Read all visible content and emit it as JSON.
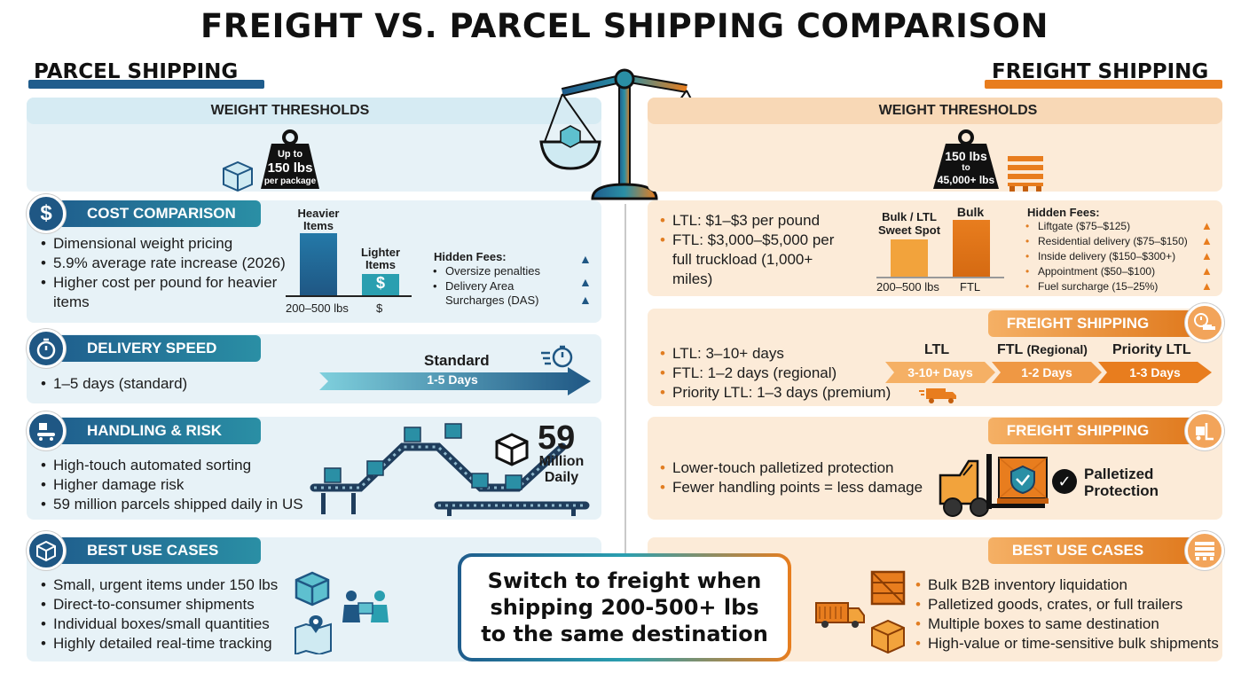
{
  "title": "FREIGHT VS. PARCEL SHIPPING COMPARISON",
  "parcel": {
    "heading": "PARCEL SHIPPING",
    "weight": {
      "header": "WEIGHT THRESHOLDS",
      "badge": [
        "Up to",
        "150 lbs",
        "per package"
      ]
    },
    "cost": {
      "title": "COST COMPARISON",
      "bullets": [
        "Dimensional weight pricing",
        "5.9% average rate increase (2026)",
        "Higher cost per pound for heavier items"
      ],
      "chart_labels": {
        "heavier": "Heavier Items",
        "lighter": "Lighter Items",
        "x_left": "200–500 lbs",
        "x_right": "$",
        "dollar": "$"
      },
      "hidden_fees_title": "Hidden Fees:",
      "hidden_fees": [
        "Oversize penalties",
        "Delivery Area Surcharges (DAS)"
      ]
    },
    "speed": {
      "title": "DELIVERY SPEED",
      "bullets": [
        "1–5 days (standard)"
      ],
      "arrow_title": "Standard",
      "arrow_text": "1-5 Days"
    },
    "handling": {
      "title": "HANDLING & RISK",
      "bullets": [
        "High-touch automated sorting",
        "Higher damage risk",
        "59 million parcels shipped daily in US"
      ],
      "stat_number": "59",
      "stat_label": [
        "Million",
        "Daily"
      ]
    },
    "use": {
      "title": "BEST USE CASES",
      "bullets": [
        "Small, urgent items under 150 lbs",
        "Direct-to-consumer shipments",
        "Individual boxes/small quantities",
        "Highly detailed real-time tracking"
      ]
    }
  },
  "freight": {
    "heading": "FREIGHT SHIPPING",
    "weight": {
      "header": "WEIGHT THRESHOLDS",
      "badge": [
        "150 lbs",
        "to",
        "45,000+ lbs"
      ]
    },
    "cost": {
      "bullets": [
        "LTL: $1–$3 per pound",
        "FTL: $3,000–$5,000 per full truckload (1,000+ miles)"
      ],
      "chart_labels": {
        "sweet": "Bulk / LTL Sweet Spot",
        "bulk": "Bulk",
        "x_left": "200–500 lbs",
        "x_right": "FTL"
      },
      "hidden_fees_title": "Hidden Fees:",
      "hidden_fees": [
        "Liftgate ($75–$125)",
        "Residential delivery ($75–$150)",
        "Inside delivery ($150–$300+)",
        "Appointment ($50–$100)",
        "Fuel surcharge (15–25%)"
      ]
    },
    "speed": {
      "tab": "FREIGHT SHIPPING",
      "bullets": [
        "LTL: 3–10+ days",
        "FTL: 1–2 days (regional)",
        "Priority LTL: 1–3 days (premium)"
      ],
      "arrows": [
        {
          "title": "LTL",
          "sub": "",
          "text": "3-10+ Days"
        },
        {
          "title": "FTL",
          "sub": "(Regional)",
          "text": "1-2 Days"
        },
        {
          "title": "Priority LTL",
          "sub": "",
          "text": "1-3 Days"
        }
      ]
    },
    "handling": {
      "tab": "FREIGHT SHIPPING",
      "bullets": [
        "Lower-touch palletized protection",
        "Fewer handling points = less damage"
      ],
      "badge": [
        "Palletized",
        "Protection"
      ]
    },
    "use": {
      "title": "BEST USE CASES",
      "bullets": [
        "Bulk B2B inventory liquidation",
        "Palletized goods, crates, or full trailers",
        "Multiple boxes to same destination",
        "High-value or time-sensitive bulk shipments"
      ]
    }
  },
  "callout": [
    "Switch to freight when",
    "shipping 200-500+ lbs",
    "to the same destination"
  ],
  "colors": {
    "parcel_dark": "#1f5784",
    "parcel_teal": "#2a9fb0",
    "freight_orange": "#e87d1e",
    "freight_light": "#f5b065"
  }
}
